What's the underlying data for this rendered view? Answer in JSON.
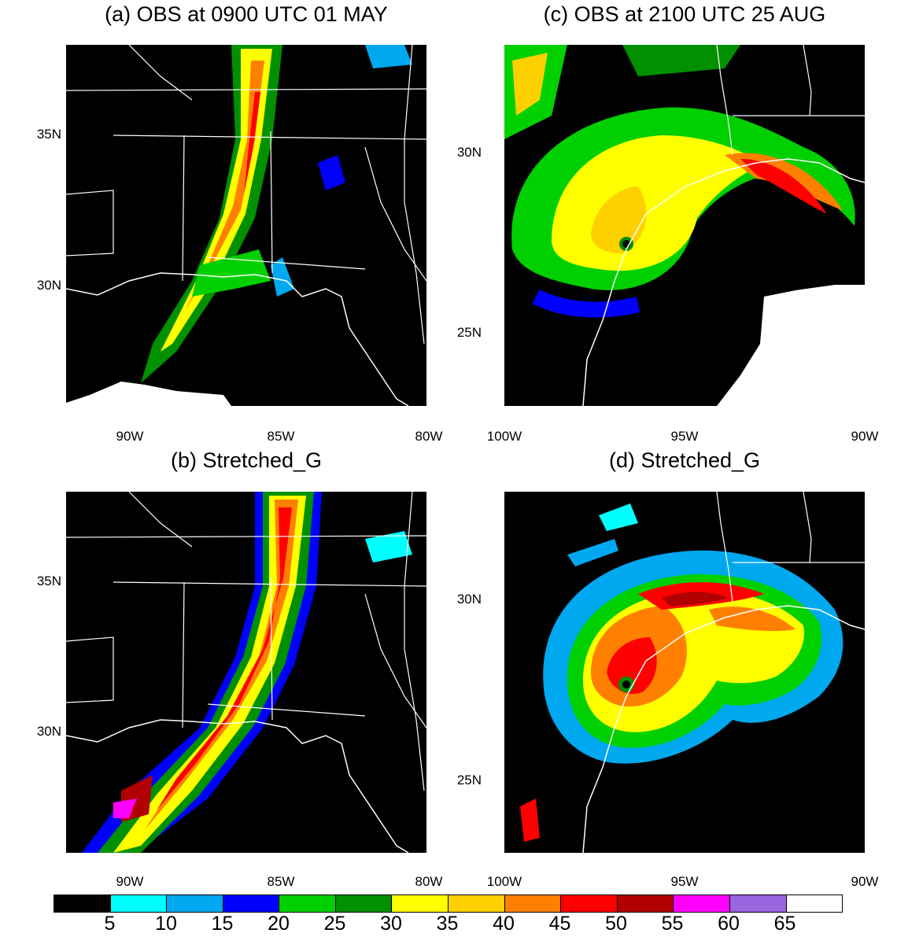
{
  "panels": [
    {
      "id": "a",
      "title": "(a) OBS at 0900 UTC 01 MAY",
      "lat_labels": [
        "35N",
        "30N"
      ],
      "lon_labels": [
        "90W",
        "85W",
        "80W"
      ]
    },
    {
      "id": "b",
      "title": "(b) Stretched_G",
      "lat_labels": [
        "35N",
        "30N"
      ],
      "lon_labels": [
        "90W",
        "85W",
        "80W"
      ]
    },
    {
      "id": "c",
      "title": "(c) OBS at 2100 UTC 25 AUG",
      "lat_labels": [
        "30N",
        "25N"
      ],
      "lon_labels": [
        "100W",
        "95W",
        "90W"
      ]
    },
    {
      "id": "d",
      "title": "(d) Stretched_G",
      "lat_labels": [
        "30N",
        "25N"
      ],
      "lon_labels": [
        "100W",
        "95W",
        "90W"
      ]
    }
  ],
  "colorbar": {
    "colors": [
      "#000000",
      "#00ffff",
      "#00a8ef",
      "#0000ff",
      "#00d000",
      "#009000",
      "#ffff00",
      "#ffd000",
      "#ff8000",
      "#ff0000",
      "#b00000",
      "#ff00ff",
      "#9966dd",
      "#ffffff"
    ],
    "labels": [
      "5",
      "10",
      "15",
      "20",
      "25",
      "30",
      "35",
      "40",
      "45",
      "50",
      "55",
      "60",
      "65"
    ]
  }
}
